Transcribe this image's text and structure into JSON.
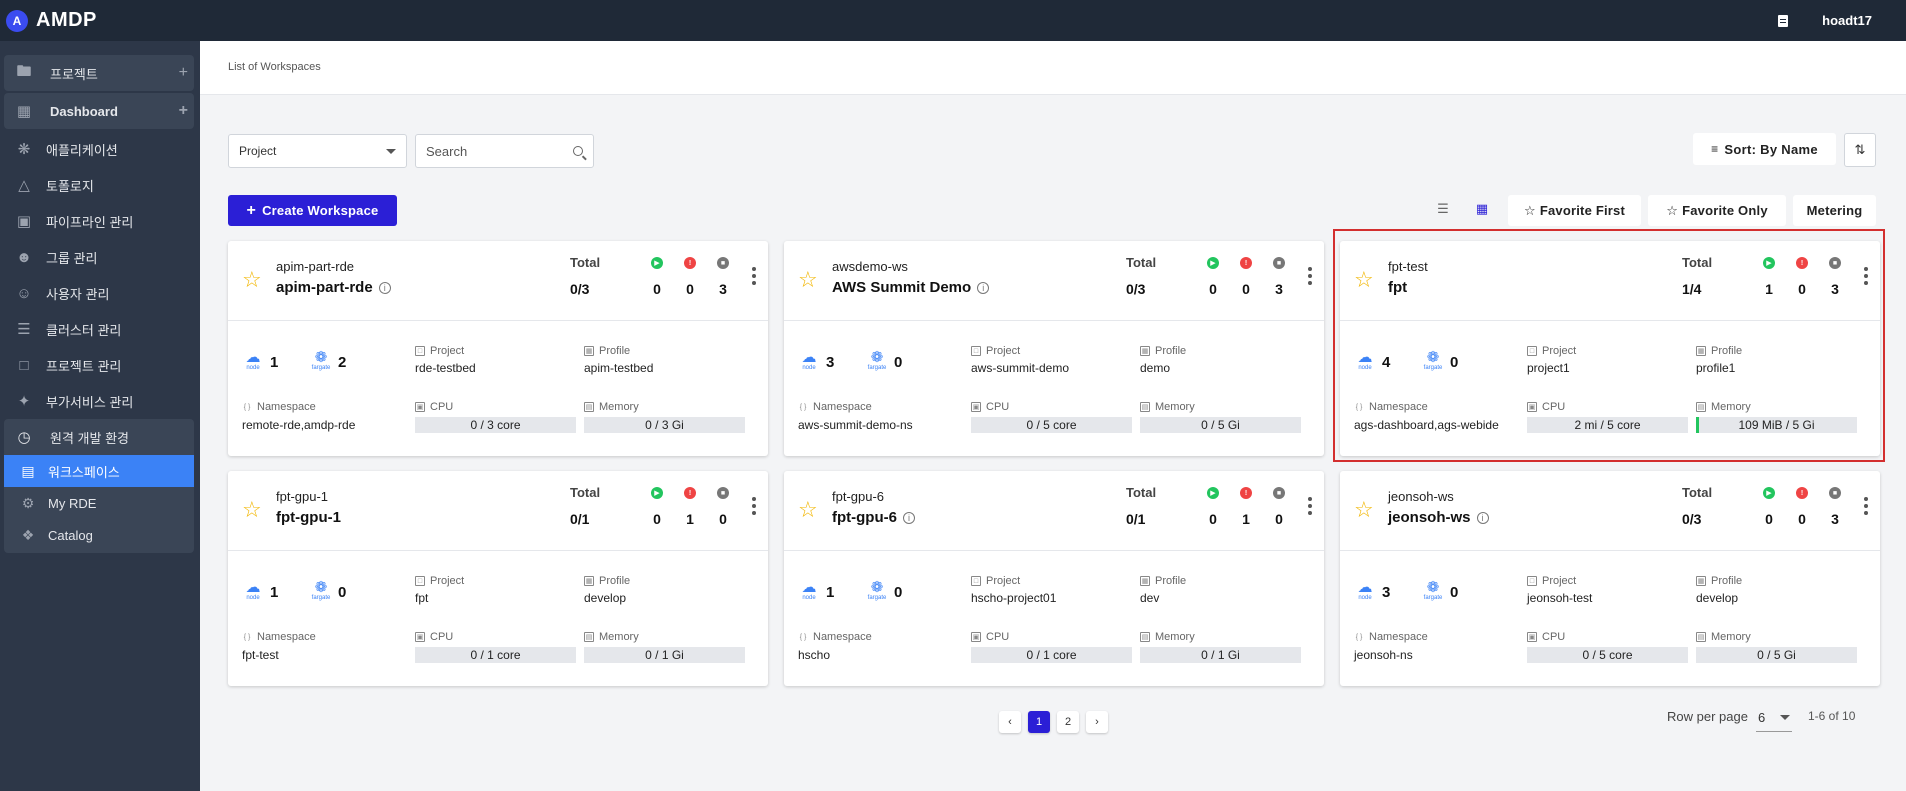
{
  "app": {
    "title": "AMDP",
    "logo_letter": "A",
    "user": "hoadt17"
  },
  "sidebar": {
    "groups": [
      {
        "label": "프로젝트",
        "icon": "folder-icon"
      },
      {
        "label": "Dashboard",
        "icon": "dashboard-icon"
      }
    ],
    "items": [
      {
        "label": "애플리케이션",
        "icon": "app-icon"
      },
      {
        "label": "토폴로지",
        "icon": "topology-icon"
      },
      {
        "label": "파이프라인 관리",
        "icon": "pipeline-icon"
      },
      {
        "label": "그룹 관리",
        "icon": "group-icon"
      },
      {
        "label": "사용자 관리",
        "icon": "user-icon"
      },
      {
        "label": "클러스터 관리",
        "icon": "cluster-icon"
      },
      {
        "label": "프로젝트 관리",
        "icon": "folder-icon"
      },
      {
        "label": "부가서비스 관리",
        "icon": "addon-icon"
      }
    ],
    "rde": {
      "label": "원격 개발 환경",
      "children": [
        {
          "label": "워크스페이스",
          "icon": "workspace-icon",
          "active": true
        },
        {
          "label": "My RDE",
          "icon": "gear-icon"
        },
        {
          "label": "Catalog",
          "icon": "puzzle-icon"
        }
      ]
    }
  },
  "breadcrumb": "List of Workspaces",
  "toolbar": {
    "project_select": "Project",
    "search_placeholder": "Search",
    "sort_label": "Sort: By Name",
    "create_label": "Create Workspace",
    "favorite_first": "Favorite First",
    "favorite_only": "Favorite Only",
    "metering": "Metering"
  },
  "labels": {
    "total": "Total",
    "project": "Project",
    "profile": "Profile",
    "namespace": "Namespace",
    "cpu": "CPU",
    "memory": "Memory",
    "node": "node",
    "fargate": "fargate"
  },
  "workspaces": [
    {
      "id": "apim-part-rde",
      "name": "apim-part-rde",
      "info": true,
      "total": "0/3",
      "running": "0",
      "error": "0",
      "stopped": "3",
      "node": "1",
      "fargate": "2",
      "project": "rde-testbed",
      "profile": "apim-testbed",
      "namespace": "remote-rde,amdp-rde",
      "cpu": "0 / 3 core",
      "memory": "0 / 3 Gi",
      "memory_fill": 0
    },
    {
      "id": "awsdemo-ws",
      "name": "AWS Summit Demo",
      "info": true,
      "total": "0/3",
      "running": "0",
      "error": "0",
      "stopped": "3",
      "node": "3",
      "fargate": "0",
      "project": "aws-summit-demo",
      "profile": "demo",
      "namespace": "aws-summit-demo-ns",
      "cpu": "0 / 5 core",
      "memory": "0 / 5 Gi",
      "memory_fill": 0
    },
    {
      "id": "fpt-test",
      "name": "fpt",
      "info": false,
      "total": "1/4",
      "running": "1",
      "error": "0",
      "stopped": "3",
      "node": "4",
      "fargate": "0",
      "project": "project1",
      "profile": "profile1",
      "namespace": "ags-dashboard,ags-webide",
      "cpu": "2 mi / 5 core",
      "memory": "109 MiB / 5 Gi",
      "memory_fill": 0.02
    },
    {
      "id": "fpt-gpu-1",
      "name": "fpt-gpu-1",
      "info": false,
      "total": "0/1",
      "running": "0",
      "error": "1",
      "stopped": "0",
      "node": "1",
      "fargate": "0",
      "project": "fpt",
      "profile": "develop",
      "namespace": "fpt-test",
      "cpu": "0 / 1 core",
      "memory": "0 / 1 Gi",
      "memory_fill": 0
    },
    {
      "id": "fpt-gpu-6",
      "name": "fpt-gpu-6",
      "info": true,
      "total": "0/1",
      "running": "0",
      "error": "1",
      "stopped": "0",
      "node": "1",
      "fargate": "0",
      "project": "hscho-project01",
      "profile": "dev",
      "namespace": "hscho",
      "cpu": "0 / 1 core",
      "memory": "0 / 1 Gi",
      "memory_fill": 0
    },
    {
      "id": "jeonsoh-ws",
      "name": "jeonsoh-ws",
      "info": true,
      "total": "0/3",
      "running": "0",
      "error": "0",
      "stopped": "3",
      "node": "3",
      "fargate": "0",
      "project": "jeonsoh-test",
      "profile": "develop",
      "namespace": "jeonsoh-ns",
      "cpu": "0 / 5 core",
      "memory": "0 / 5 Gi",
      "memory_fill": 0
    }
  ],
  "pagination": {
    "pages": [
      "1",
      "2"
    ],
    "current": "1",
    "rows_label": "Row per page",
    "rows_value": "6",
    "range": "1-6 of 10"
  },
  "colors": {
    "accent": "#2b1fd6",
    "running": "#22c55e",
    "error": "#ef4444",
    "stopped": "#777777",
    "star": "#f2b705",
    "highlight": "#d32f2f"
  }
}
